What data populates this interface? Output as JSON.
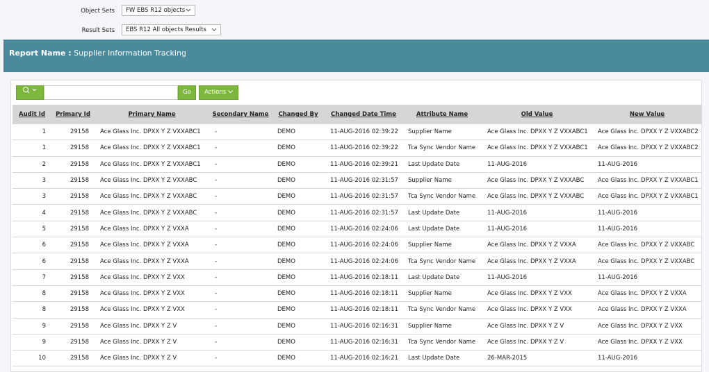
{
  "filters": [
    {
      "label": "Object Sets",
      "value": "FW EBS R12 objects"
    },
    {
      "label": "Result Sets",
      "value": "EBS R12 All objects Results"
    }
  ],
  "report": {
    "label": "Report Name :",
    "name": "Supplier Information Tracking"
  },
  "toolbar": {
    "go": "Go",
    "actions": "Actions"
  },
  "table": {
    "headers": [
      "Audit Id",
      "Primary Id",
      "Primary Name",
      "Secondary Name",
      "Changed By",
      "Changed Date Time",
      "Attribute Name",
      "Old Value",
      "New Value"
    ],
    "rows": [
      [
        "1",
        "29158",
        "Ace Glass Inc. DPXX Y Z VXXABC1",
        "-",
        "DEMO",
        "11-AUG-2016 02:39:22",
        "Supplier Name",
        "Ace Glass Inc. DPXX Y Z VXXABC1",
        "Ace Glass Inc. DPXX Y Z VXXABC2"
      ],
      [
        "1",
        "29158",
        "Ace Glass Inc. DPXX Y Z VXXABC1",
        "-",
        "DEMO",
        "11-AUG-2016 02:39:22",
        "Tca Sync Vendor Name",
        "Ace Glass Inc. DPXX Y Z VXXABC1",
        "Ace Glass Inc. DPXX Y Z VXXABC2"
      ],
      [
        "2",
        "29158",
        "Ace Glass Inc. DPXX Y Z VXXABC1",
        "-",
        "DEMO",
        "11-AUG-2016 02:39:21",
        "Last Update Date",
        "11-AUG-2016",
        "11-AUG-2016"
      ],
      [
        "3",
        "29158",
        "Ace Glass Inc. DPXX Y Z VXXABC",
        "-",
        "DEMO",
        "11-AUG-2016 02:31:57",
        "Supplier Name",
        "Ace Glass Inc. DPXX Y Z VXXABC",
        "Ace Glass Inc. DPXX Y Z VXXABC1"
      ],
      [
        "3",
        "29158",
        "Ace Glass Inc. DPXX Y Z VXXABC",
        "-",
        "DEMO",
        "11-AUG-2016 02:31:57",
        "Tca Sync Vendor Name",
        "Ace Glass Inc. DPXX Y Z VXXABC",
        "Ace Glass Inc. DPXX Y Z VXXABC1"
      ],
      [
        "4",
        "29158",
        "Ace Glass Inc. DPXX Y Z VXXABC",
        "-",
        "DEMO",
        "11-AUG-2016 02:31:57",
        "Last Update Date",
        "11-AUG-2016",
        "11-AUG-2016"
      ],
      [
        "5",
        "29158",
        "Ace Glass Inc. DPXX Y Z VXXA",
        "-",
        "DEMO",
        "11-AUG-2016 02:24:06",
        "Last Update Date",
        "11-AUG-2016",
        "11-AUG-2016"
      ],
      [
        "6",
        "29158",
        "Ace Glass Inc. DPXX Y Z VXXA",
        "-",
        "DEMO",
        "11-AUG-2016 02:24:06",
        "Supplier Name",
        "Ace Glass Inc. DPXX Y Z VXXA",
        "Ace Glass Inc. DPXX Y Z VXXABC"
      ],
      [
        "6",
        "29158",
        "Ace Glass Inc. DPXX Y Z VXXA",
        "-",
        "DEMO",
        "11-AUG-2016 02:24:06",
        "Tca Sync Vendor Name",
        "Ace Glass Inc. DPXX Y Z VXXA",
        "Ace Glass Inc. DPXX Y Z VXXABC"
      ],
      [
        "7",
        "29158",
        "Ace Glass Inc. DPXX Y Z VXX",
        "-",
        "DEMO",
        "11-AUG-2016 02:18:11",
        "Last Update Date",
        "11-AUG-2016",
        "11-AUG-2016"
      ],
      [
        "8",
        "29158",
        "Ace Glass Inc. DPXX Y Z VXX",
        "-",
        "DEMO",
        "11-AUG-2016 02:18:11",
        "Supplier Name",
        "Ace Glass Inc. DPXX Y Z VXX",
        "Ace Glass Inc. DPXX Y Z VXXA"
      ],
      [
        "8",
        "29158",
        "Ace Glass Inc. DPXX Y Z VXX",
        "-",
        "DEMO",
        "11-AUG-2016 02:18:11",
        "Tca Sync Vendor Name",
        "Ace Glass Inc. DPXX Y Z VXX",
        "Ace Glass Inc. DPXX Y Z VXXA"
      ],
      [
        "9",
        "29158",
        "Ace Glass Inc. DPXX Y Z V",
        "-",
        "DEMO",
        "11-AUG-2016 02:16:31",
        "Supplier Name",
        "Ace Glass Inc. DPXX Y Z V",
        "Ace Glass Inc. DPXX Y Z VXX"
      ],
      [
        "9",
        "29158",
        "Ace Glass Inc. DPXX Y Z V",
        "-",
        "DEMO",
        "11-AUG-2016 02:16:31",
        "Tca Sync Vendor Name",
        "Ace Glass Inc. DPXX Y Z V",
        "Ace Glass Inc. DPXX Y Z VXX"
      ],
      [
        "10",
        "29158",
        "Ace Glass Inc. DPXX Y Z V",
        "-",
        "DEMO",
        "11-AUG-2016 02:16:21",
        "Last Update Date",
        "26-MAR-2015",
        "11-AUG-2016"
      ]
    ]
  }
}
